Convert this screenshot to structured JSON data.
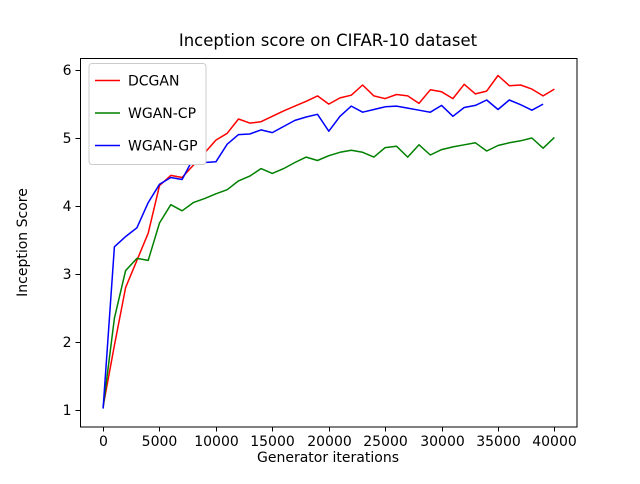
{
  "chart_data": {
    "type": "line",
    "title": "Inception score on CIFAR-10 dataset",
    "xlabel": "Generator iterations",
    "ylabel": "Inception Score",
    "xlim": [
      -2000,
      42000
    ],
    "ylim": [
      0.75,
      6.17
    ],
    "xticks": [
      0,
      5000,
      10000,
      15000,
      20000,
      25000,
      30000,
      35000,
      40000
    ],
    "yticks": [
      1,
      2,
      3,
      4,
      5,
      6
    ],
    "grid": false,
    "legend_position": "upper left",
    "x_step": 1000,
    "series": [
      {
        "name": "DCGAN",
        "color": "#ff0000",
        "x_start": 0,
        "values": [
          1.05,
          1.95,
          2.8,
          3.2,
          3.6,
          4.3,
          4.45,
          4.42,
          4.6,
          4.78,
          4.97,
          5.07,
          5.28,
          5.22,
          5.24,
          5.32,
          5.4,
          5.47,
          5.54,
          5.62,
          5.5,
          5.59,
          5.63,
          5.78,
          5.62,
          5.58,
          5.64,
          5.62,
          5.51,
          5.71,
          5.68,
          5.58,
          5.79,
          5.65,
          5.69,
          5.92,
          5.77,
          5.78,
          5.72,
          5.62,
          5.72
        ]
      },
      {
        "name": "WGAN-CP",
        "color": "#008000",
        "x_start": 0,
        "values": [
          1.03,
          2.35,
          3.05,
          3.23,
          3.2,
          3.75,
          4.02,
          3.93,
          4.05,
          4.11,
          4.18,
          4.24,
          4.37,
          4.44,
          4.55,
          4.48,
          4.55,
          4.64,
          4.72,
          4.67,
          4.74,
          4.79,
          4.82,
          4.79,
          4.72,
          4.86,
          4.88,
          4.72,
          4.9,
          4.75,
          4.83,
          4.87,
          4.9,
          4.93,
          4.81,
          4.89,
          4.93,
          4.96,
          5.0,
          4.85,
          5.01
        ]
      },
      {
        "name": "WGAN-GP",
        "color": "#0000ff",
        "x_start": 0,
        "values": [
          1.02,
          3.4,
          3.55,
          3.68,
          4.05,
          4.32,
          4.42,
          4.39,
          4.7,
          4.64,
          4.65,
          4.91,
          5.05,
          5.06,
          5.12,
          5.08,
          5.17,
          5.26,
          5.31,
          5.35,
          5.1,
          5.32,
          5.47,
          5.38,
          5.42,
          5.46,
          5.47,
          5.44,
          5.41,
          5.38,
          5.48,
          5.32,
          5.45,
          5.48,
          5.56,
          5.42,
          5.56,
          5.49,
          5.41,
          5.5
        ]
      }
    ]
  }
}
